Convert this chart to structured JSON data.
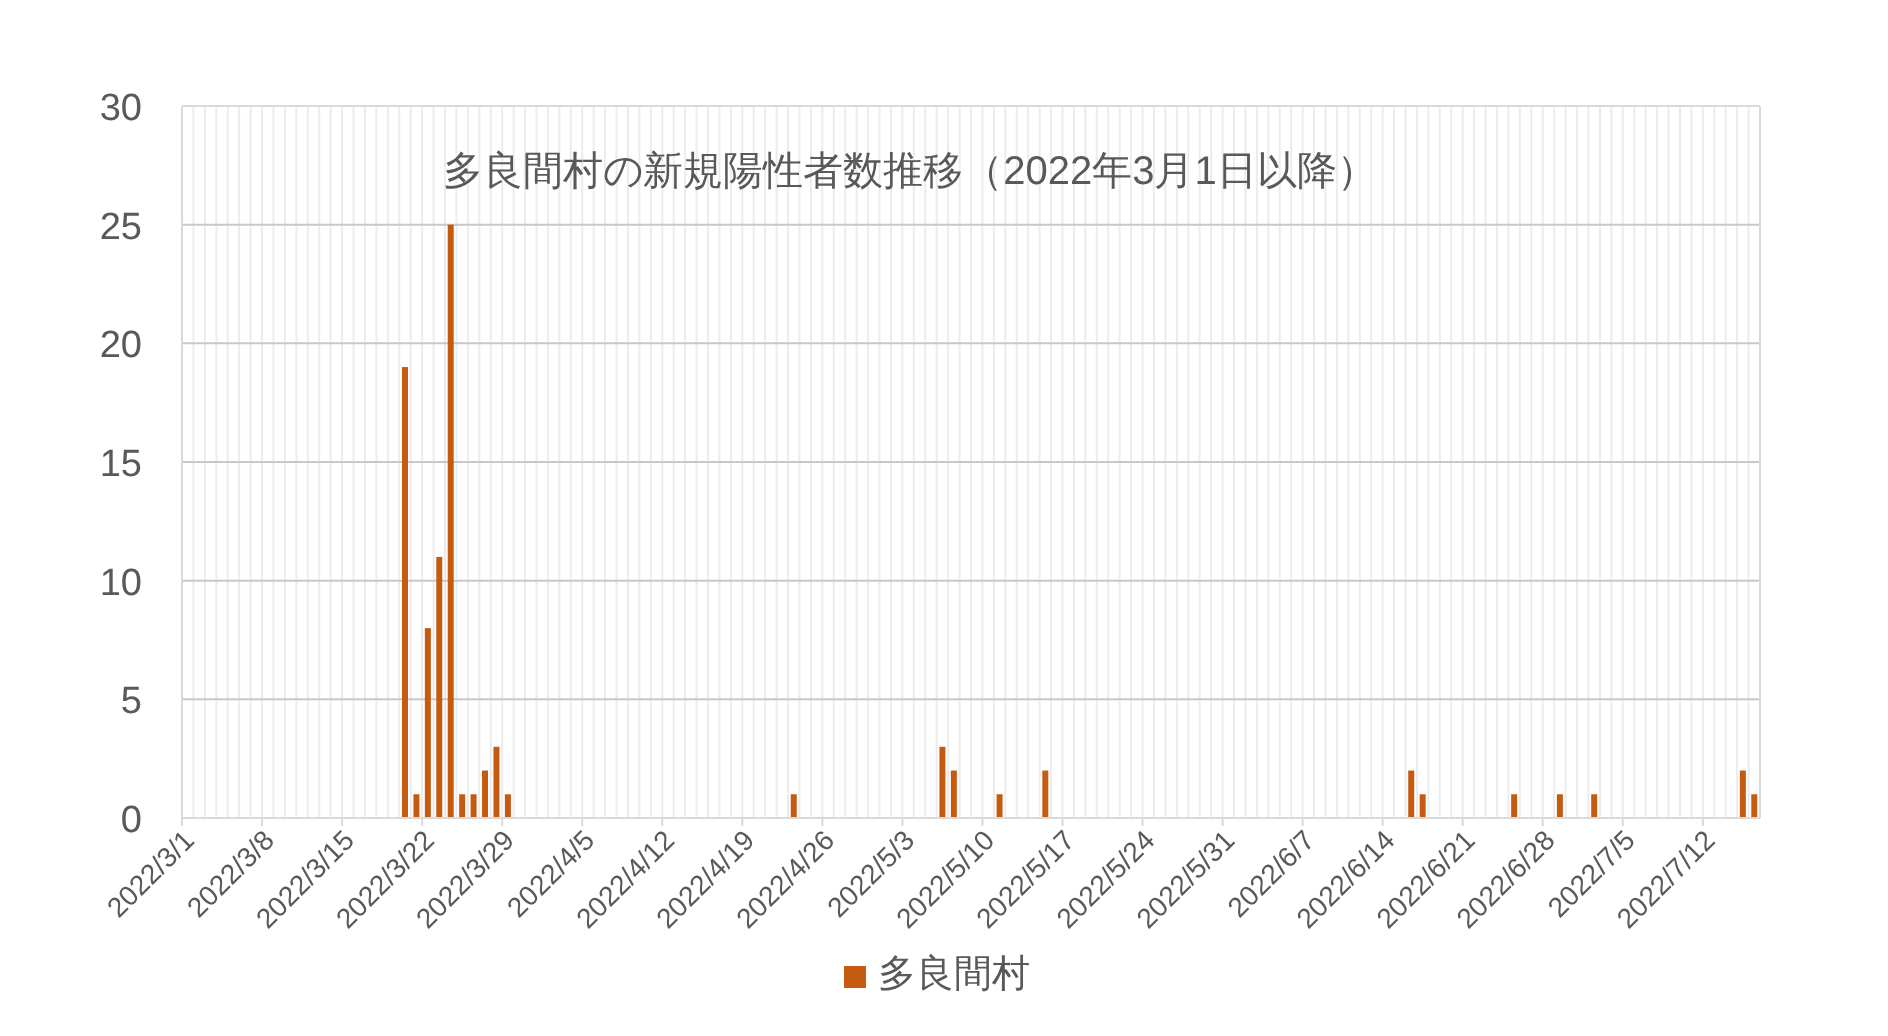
{
  "chart_data": {
    "type": "bar",
    "title": "多良間村の新規陽性者数推移（2022年3月1日以降）",
    "categories": [
      "2022/3/1",
      null,
      null,
      null,
      null,
      null,
      null,
      "2022/3/8",
      null,
      null,
      null,
      null,
      null,
      null,
      "2022/3/15",
      null,
      null,
      null,
      null,
      null,
      null,
      "2022/3/22",
      null,
      null,
      null,
      null,
      null,
      null,
      "2022/3/29",
      null,
      null,
      null,
      null,
      null,
      null,
      "2022/4/5",
      null,
      null,
      null,
      null,
      null,
      null,
      "2022/4/12",
      null,
      null,
      null,
      null,
      null,
      null,
      "2022/4/19",
      null,
      null,
      null,
      null,
      null,
      null,
      "2022/4/26",
      null,
      null,
      null,
      null,
      null,
      null,
      "2022/5/3",
      null,
      null,
      null,
      null,
      null,
      null,
      "2022/5/10",
      null,
      null,
      null,
      null,
      null,
      null,
      "2022/5/17",
      null,
      null,
      null,
      null,
      null,
      null,
      "2022/5/24",
      null,
      null,
      null,
      null,
      null,
      null,
      "2022/5/31",
      null,
      null,
      null,
      null,
      null,
      null,
      "2022/6/7",
      null,
      null,
      null,
      null,
      null,
      null,
      "2022/6/14",
      null,
      null,
      null,
      null,
      null,
      null,
      "2022/6/21",
      null,
      null,
      null,
      null,
      null,
      null,
      "2022/6/28",
      null,
      null,
      null,
      null,
      null,
      null,
      "2022/7/5",
      null,
      null,
      null,
      null,
      null,
      null,
      "2022/7/12",
      null,
      null,
      null,
      null
    ],
    "series": [
      {
        "name": "多良間村",
        "color": "#c55a11",
        "values": [
          0,
          0,
          0,
          0,
          0,
          0,
          0,
          0,
          0,
          0,
          0,
          0,
          0,
          0,
          0,
          0,
          0,
          0,
          0,
          19,
          1,
          8,
          11,
          25,
          1,
          1,
          2,
          3,
          1,
          0,
          0,
          0,
          0,
          0,
          0,
          0,
          0,
          0,
          0,
          0,
          0,
          0,
          0,
          0,
          0,
          0,
          0,
          0,
          0,
          0,
          0,
          0,
          0,
          1,
          0,
          0,
          0,
          0,
          0,
          0,
          0,
          0,
          0,
          0,
          0,
          0,
          3,
          2,
          0,
          0,
          0,
          1,
          0,
          0,
          0,
          2,
          0,
          0,
          0,
          0,
          0,
          0,
          0,
          0,
          0,
          0,
          0,
          0,
          0,
          0,
          0,
          0,
          0,
          0,
          0,
          0,
          0,
          0,
          0,
          0,
          0,
          0,
          0,
          0,
          0,
          0,
          0,
          2,
          1,
          0,
          0,
          0,
          0,
          0,
          0,
          0,
          1,
          0,
          0,
          0,
          1,
          0,
          0,
          1,
          0,
          0,
          0,
          0,
          0,
          0,
          0,
          0,
          0,
          0,
          0,
          0,
          2,
          1
        ]
      }
    ],
    "ylim": [
      0,
      30
    ],
    "yticks": [
      0,
      5,
      10,
      15,
      20,
      25,
      30
    ],
    "grid": true,
    "legend": "bottom"
  }
}
